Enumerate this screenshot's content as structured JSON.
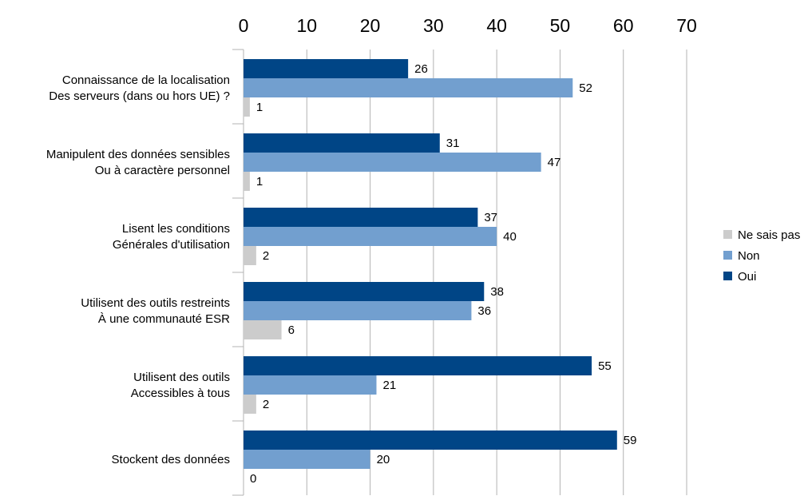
{
  "chart_data": {
    "type": "bar",
    "orientation": "horizontal",
    "categories": [
      [
        "Connaissance de la localisation",
        "Des serveurs (dans ou hors UE) ?"
      ],
      [
        "Manipulent des données sensibles",
        "Ou à caractère personnel"
      ],
      [
        "Lisent les conditions",
        "Générales d'utilisation"
      ],
      [
        "Utilisent des outils restreints",
        "À une communauté ESR"
      ],
      [
        "Utilisent des outils",
        "Accessibles à tous"
      ],
      [
        "Stockent des données"
      ]
    ],
    "series": [
      {
        "name": "Oui",
        "color": "#004586",
        "values": [
          26,
          31,
          37,
          38,
          55,
          59
        ]
      },
      {
        "name": "Non",
        "color": "#729fcf",
        "values": [
          52,
          47,
          40,
          36,
          21,
          20
        ]
      },
      {
        "name": "Ne sais pas",
        "color": "#cccccc",
        "values": [
          1,
          1,
          2,
          6,
          2,
          0
        ]
      }
    ],
    "xlim": [
      0,
      70
    ],
    "xticks": [
      0,
      10,
      20,
      30,
      40,
      50,
      60,
      70
    ],
    "x_axis_position": "top",
    "grid": true,
    "legend": {
      "position": "right",
      "order": [
        "Ne sais pas",
        "Non",
        "Oui"
      ]
    },
    "title": "",
    "xlabel": "",
    "ylabel": ""
  }
}
